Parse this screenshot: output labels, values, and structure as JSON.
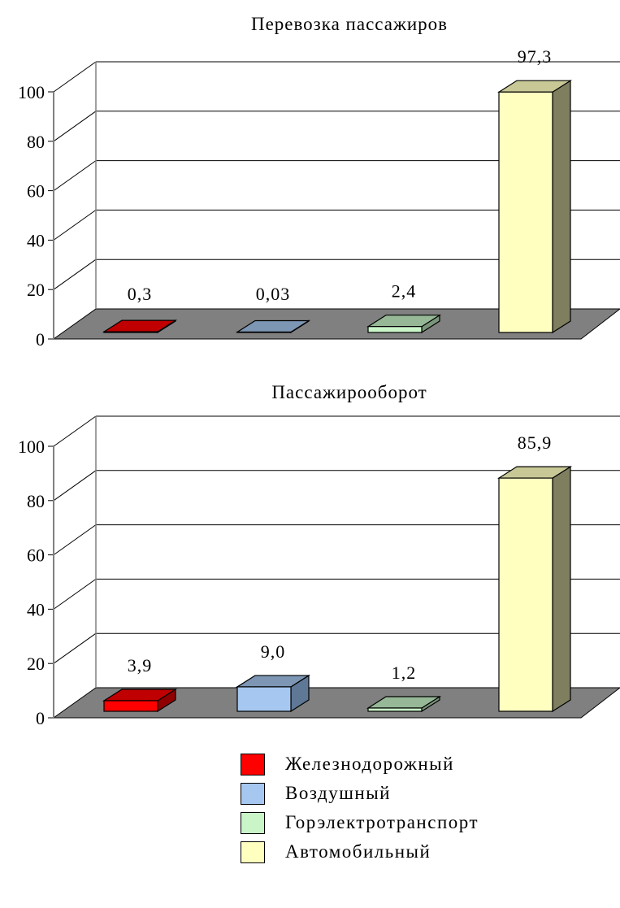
{
  "chart_data": [
    {
      "type": "bar",
      "title": "Перевозка пассажиров",
      "categories": [
        "Железнодорожный",
        "Воздушный",
        "Горэлектротранспорт",
        "Автомобильный"
      ],
      "values": [
        0.3,
        0.03,
        2.4,
        97.3
      ],
      "data_labels": [
        "0,3",
        "0,03",
        "2,4",
        "97,3"
      ],
      "ylim": [
        0,
        100
      ],
      "yticks": [
        "0",
        "20",
        "40",
        "60",
        "80",
        "100"
      ],
      "grid": true,
      "three_d": true
    },
    {
      "type": "bar",
      "title": "Пассажирооборот",
      "categories": [
        "Железнодорожный",
        "Воздушный",
        "Горэлектротранспорт",
        "Автомобильный"
      ],
      "values": [
        3.9,
        9.0,
        1.2,
        85.9
      ],
      "data_labels": [
        "3,9",
        "9,0",
        "1,2",
        "85,9"
      ],
      "ylim": [
        0,
        100
      ],
      "yticks": [
        "0",
        "20",
        "40",
        "60",
        "80",
        "100"
      ],
      "grid": true,
      "three_d": true
    }
  ],
  "legend": {
    "placement": "bottom",
    "items": [
      {
        "label": "Железнодорожный",
        "color": "#ff0000"
      },
      {
        "label": "Воздушный",
        "color": "#a6c8f0"
      },
      {
        "label": "Горэлектротранспорт",
        "color": "#c9f5c9"
      },
      {
        "label": "Автомобильный",
        "color": "#ffffc0"
      }
    ]
  },
  "colors": {
    "floor": "#808080",
    "series": [
      {
        "front": "#ff0000",
        "top": "#c00000",
        "side": "#900000"
      },
      {
        "front": "#a6c8f0",
        "top": "#7c96b4",
        "side": "#5e7896"
      },
      {
        "front": "#c9f5c9",
        "top": "#96b896",
        "side": "#7a967a"
      },
      {
        "front": "#ffffc0",
        "top": "#c8c896",
        "side": "#7f7f60"
      }
    ]
  }
}
